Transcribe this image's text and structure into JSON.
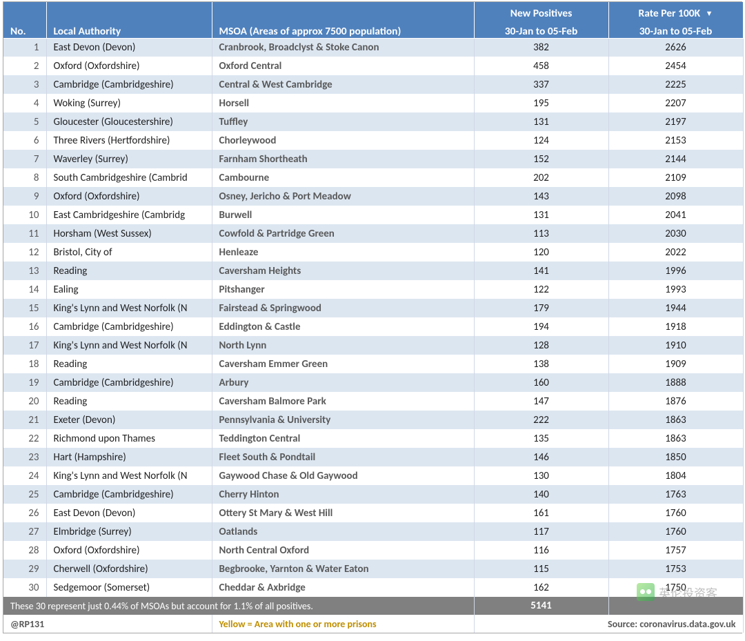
{
  "header": {
    "no": "No.",
    "la": "Local Authority",
    "msoa": "MSOA (Areas of approx 7500 population)",
    "np_top": "New Positives",
    "np_bot": "30-Jan to 05-Feb",
    "rate_top": "Rate Per 100K",
    "rate_bot": "30-Jan to 05-Feb"
  },
  "style": {
    "header_bg": "#4f81bd",
    "header_fg": "#ffffff",
    "odd_bg": "#dce6f1",
    "even_bg": "#ffffff",
    "msoa_fg": "#595959",
    "summary_bg": "#808080",
    "yellow_fg": "#bf8f00"
  },
  "rows": [
    {
      "no": 1,
      "la": "East Devon (Devon)",
      "msoa": "Cranbrook, Broadclyst & Stoke Canon",
      "np": 382,
      "rate": 2626
    },
    {
      "no": 2,
      "la": "Oxford (Oxfordshire)",
      "msoa": "Oxford Central",
      "np": 458,
      "rate": 2454
    },
    {
      "no": 3,
      "la": "Cambridge (Cambridgeshire)",
      "msoa": "Central & West Cambridge",
      "np": 337,
      "rate": 2225
    },
    {
      "no": 4,
      "la": "Woking (Surrey)",
      "msoa": "Horsell",
      "np": 195,
      "rate": 2207
    },
    {
      "no": 5,
      "la": "Gloucester (Gloucestershire)",
      "msoa": "Tuffley",
      "np": 131,
      "rate": 2197
    },
    {
      "no": 6,
      "la": "Three Rivers (Hertfordshire)",
      "msoa": "Chorleywood",
      "np": 124,
      "rate": 2153
    },
    {
      "no": 7,
      "la": "Waverley (Surrey)",
      "msoa": "Farnham Shortheath",
      "np": 152,
      "rate": 2144
    },
    {
      "no": 8,
      "la": "South Cambridgeshire (Cambrid",
      "msoa": "Cambourne",
      "np": 202,
      "rate": 2109
    },
    {
      "no": 9,
      "la": "Oxford (Oxfordshire)",
      "msoa": "Osney, Jericho & Port Meadow",
      "np": 143,
      "rate": 2098
    },
    {
      "no": 10,
      "la": "East Cambridgeshire (Cambridg",
      "msoa": "Burwell",
      "np": 131,
      "rate": 2041
    },
    {
      "no": 11,
      "la": "Horsham (West Sussex)",
      "msoa": "Cowfold & Partridge Green",
      "np": 113,
      "rate": 2030
    },
    {
      "no": 12,
      "la": "Bristol, City of",
      "msoa": "Henleaze",
      "np": 120,
      "rate": 2022
    },
    {
      "no": 13,
      "la": "Reading",
      "msoa": "Caversham Heights",
      "np": 141,
      "rate": 1996
    },
    {
      "no": 14,
      "la": "Ealing",
      "msoa": "Pitshanger",
      "np": 122,
      "rate": 1993
    },
    {
      "no": 15,
      "la": "King's Lynn and West Norfolk (N",
      "msoa": "Fairstead & Springwood",
      "np": 179,
      "rate": 1944
    },
    {
      "no": 16,
      "la": "Cambridge (Cambridgeshire)",
      "msoa": "Eddington & Castle",
      "np": 194,
      "rate": 1918
    },
    {
      "no": 17,
      "la": "King's Lynn and West Norfolk (N",
      "msoa": "North Lynn",
      "np": 128,
      "rate": 1910
    },
    {
      "no": 18,
      "la": "Reading",
      "msoa": "Caversham Emmer Green",
      "np": 138,
      "rate": 1909
    },
    {
      "no": 19,
      "la": "Cambridge (Cambridgeshire)",
      "msoa": "Arbury",
      "np": 160,
      "rate": 1888
    },
    {
      "no": 20,
      "la": "Reading",
      "msoa": "Caversham Balmore Park",
      "np": 147,
      "rate": 1876
    },
    {
      "no": 21,
      "la": "Exeter (Devon)",
      "msoa": "Pennsylvania & University",
      "np": 222,
      "rate": 1863
    },
    {
      "no": 22,
      "la": "Richmond upon Thames",
      "msoa": "Teddington Central",
      "np": 135,
      "rate": 1863
    },
    {
      "no": 23,
      "la": "Hart (Hampshire)",
      "msoa": "Fleet South & Pondtail",
      "np": 146,
      "rate": 1850
    },
    {
      "no": 24,
      "la": "King's Lynn and West Norfolk (N",
      "msoa": "Gaywood Chase & Old Gaywood",
      "np": 130,
      "rate": 1804
    },
    {
      "no": 25,
      "la": "Cambridge (Cambridgeshire)",
      "msoa": "Cherry Hinton",
      "np": 140,
      "rate": 1763
    },
    {
      "no": 26,
      "la": "East Devon (Devon)",
      "msoa": "Ottery St Mary & West Hill",
      "np": 161,
      "rate": 1760
    },
    {
      "no": 27,
      "la": "Elmbridge (Surrey)",
      "msoa": "Oatlands",
      "np": 117,
      "rate": 1760
    },
    {
      "no": 28,
      "la": "Oxford (Oxfordshire)",
      "msoa": "North Central Oxford",
      "np": 116,
      "rate": 1757
    },
    {
      "no": 29,
      "la": "Cherwell (Oxfordshire)",
      "msoa": "Begbrooke, Yarnton & Water Eaton",
      "np": 115,
      "rate": 1753
    },
    {
      "no": 30,
      "la": "Sedgemoor (Somerset)",
      "msoa": "Cheddar & Axbridge",
      "np": 162,
      "rate": 1750
    }
  ],
  "summary": {
    "text": "These 30 represent just 0.44% of MSOAs but account for 1.1% of all positives.",
    "total": 5141
  },
  "footer": {
    "handle": "@RP131",
    "legend": "Yellow = Area with one or more prisons",
    "source": "Source: coronavirus.data.gov.uk"
  },
  "watermark": "英伦投资客"
}
